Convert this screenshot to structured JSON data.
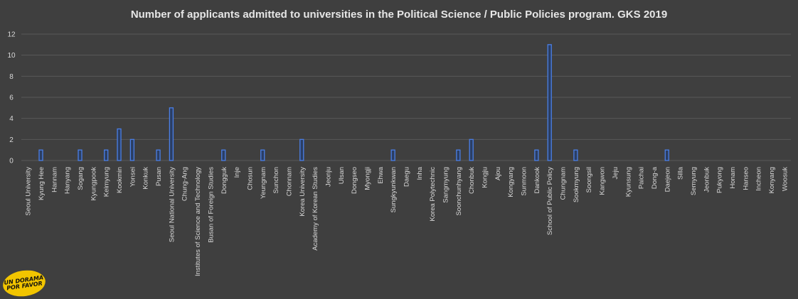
{
  "chart_data": {
    "type": "bar",
    "title": "Number of applicants admitted to universities in the Political Science / Public Policies program. GKS 2019",
    "xlabel": "",
    "ylabel": "",
    "ylim": [
      0,
      12
    ],
    "yticks": [
      0,
      2,
      4,
      6,
      8,
      10,
      12
    ],
    "grid": true,
    "legend": "none",
    "colors": {
      "background": "#3f3f3f",
      "bar_fill": "#2b3e63",
      "bar_edge": "#4a7fe6",
      "grid": "#595959",
      "text": "#d9d9d9"
    },
    "categories": [
      "Seoul University",
      "Kyung Hee",
      "Hannam",
      "Hanyang",
      "Sogang",
      "Kyungpook",
      "Keimyung",
      "Kookmin",
      "Yonsei",
      "Konkuk",
      "Pusan",
      "Seoul National University",
      "Chung-Ang",
      "Institutes of Science and Technology",
      "Busan of Foreign Studies",
      "Dongguk",
      "Inje",
      "Chosun",
      "Yeungnam",
      "Sunchon",
      "Chonnam",
      "Korea University",
      "Academy of Korean Studies",
      "Jeonju",
      "Ulsan",
      "Dongseo",
      "Myongji",
      "Ehwa",
      "Sungkyunkwan",
      "Daegu",
      "Inha",
      "Korea Polytechnic",
      "Sangmyung",
      "Soonchunhyang",
      "Chonbuk",
      "Kongju",
      "Ajou",
      "Kongyang",
      "Sunmoon",
      "Dankook",
      "School of Public Policy",
      "Chungnam",
      "Sookmyung",
      "Soongsil",
      "Kangwon",
      "Jeju",
      "Kyunsung",
      "Paichai",
      "Dong-a",
      "Daejeon",
      "Silla",
      "Semyung",
      "Jeonbuk",
      "Pukyong",
      "Honam",
      "Hanseo",
      "Incheon",
      "Konyang",
      "Woosuk"
    ],
    "values": [
      0,
      1,
      0,
      0,
      1,
      0,
      1,
      3,
      2,
      0,
      1,
      5,
      0,
      0,
      0,
      1,
      0,
      0,
      1,
      0,
      0,
      2,
      0,
      0,
      0,
      0,
      0,
      0,
      1,
      0,
      0,
      0,
      0,
      1,
      2,
      0,
      0,
      0,
      0,
      1,
      11,
      0,
      1,
      0,
      0,
      0,
      0,
      0,
      0,
      1,
      0,
      0,
      0,
      0,
      0,
      0,
      0,
      0,
      0
    ]
  },
  "logo": {
    "line1": "UN DORAMA",
    "line2": "POR FAVOR"
  }
}
